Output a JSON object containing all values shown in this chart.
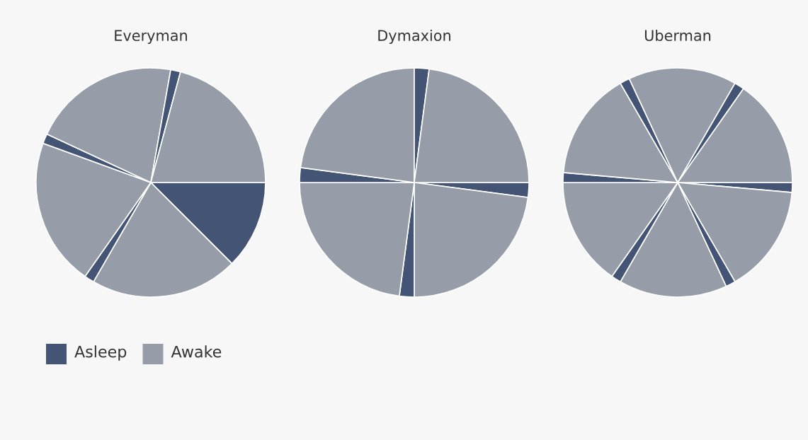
{
  "chart_data": [
    {
      "type": "pie",
      "title": "Everyman",
      "categories": [
        null,
        null,
        null,
        null,
        null,
        null,
        null,
        null
      ],
      "values": [
        12.5,
        20.83,
        1.39,
        20.83,
        1.39,
        20.83,
        1.39,
        20.83
      ],
      "colors": [
        "#435474",
        "#969ca8",
        "#435474",
        "#969ca8",
        "#435474",
        "#969ca8",
        "#435474",
        "#969ca8"
      ],
      "annotations": [
        "Asleep",
        "Awake"
      ]
    },
    {
      "type": "pie",
      "title": "Dymaxion",
      "categories": [
        null,
        null,
        null,
        null,
        null,
        null,
        null,
        null
      ],
      "values": [
        2.08,
        22.92,
        2.08,
        22.92,
        2.08,
        22.92,
        2.08,
        22.92
      ],
      "colors": [
        "#435474",
        "#969ca8",
        "#435474",
        "#969ca8",
        "#435474",
        "#969ca8",
        "#435474",
        "#969ca8"
      ]
    },
    {
      "type": "pie",
      "title": "Uberman",
      "categories": [
        null,
        null,
        null,
        null,
        null,
        null,
        null,
        null,
        null,
        null,
        null,
        null
      ],
      "values": [
        1.39,
        15.28,
        1.39,
        15.28,
        1.39,
        15.28,
        1.39,
        15.28,
        1.39,
        15.28,
        1.39,
        15.28
      ],
      "colors": [
        "#435474",
        "#969ca8",
        "#435474",
        "#969ca8",
        "#435474",
        "#969ca8",
        "#435474",
        "#969ca8",
        "#435474",
        "#969ca8",
        "#435474",
        "#969ca8"
      ]
    }
  ]
}
